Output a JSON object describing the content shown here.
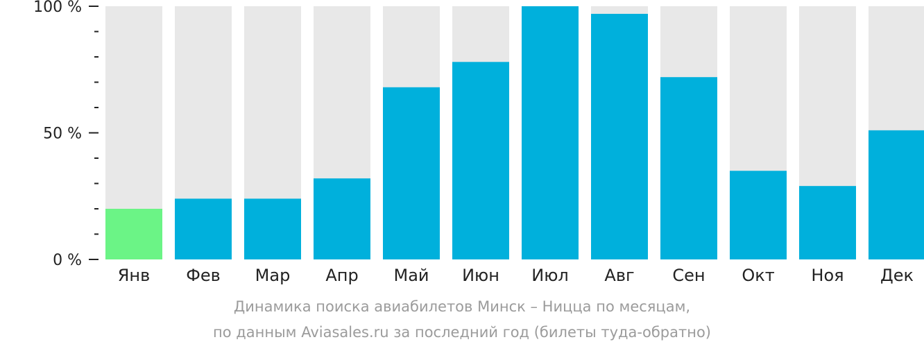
{
  "chart_data": {
    "type": "bar",
    "categories": [
      "Янв",
      "Фев",
      "Мар",
      "Апр",
      "Май",
      "Июн",
      "Июл",
      "Авг",
      "Сен",
      "Окт",
      "Ноя",
      "Дек"
    ],
    "values": [
      20,
      24,
      24,
      32,
      68,
      78,
      100,
      97,
      72,
      35,
      29,
      51
    ],
    "ylim": [
      0,
      100
    ],
    "y_ticks": [
      {
        "value": 0,
        "label": "0 %"
      },
      {
        "value": 50,
        "label": "50 %"
      },
      {
        "value": 100,
        "label": "100 %"
      }
    ],
    "caption_line1": "Динамика поиска авиабилетов Минск – Ницца по месяцам,",
    "caption_line2": "по данным Aviasales.ru за последний год (билеты туда-обратно)",
    "highlight_index": 0,
    "colors": {
      "bar": "#00b0dc",
      "highlight": "#6bf486",
      "background_bar": "#e8e8e8",
      "axis": "#222222",
      "caption": "#9b9b9b"
    },
    "grid": false,
    "legend": "none"
  }
}
